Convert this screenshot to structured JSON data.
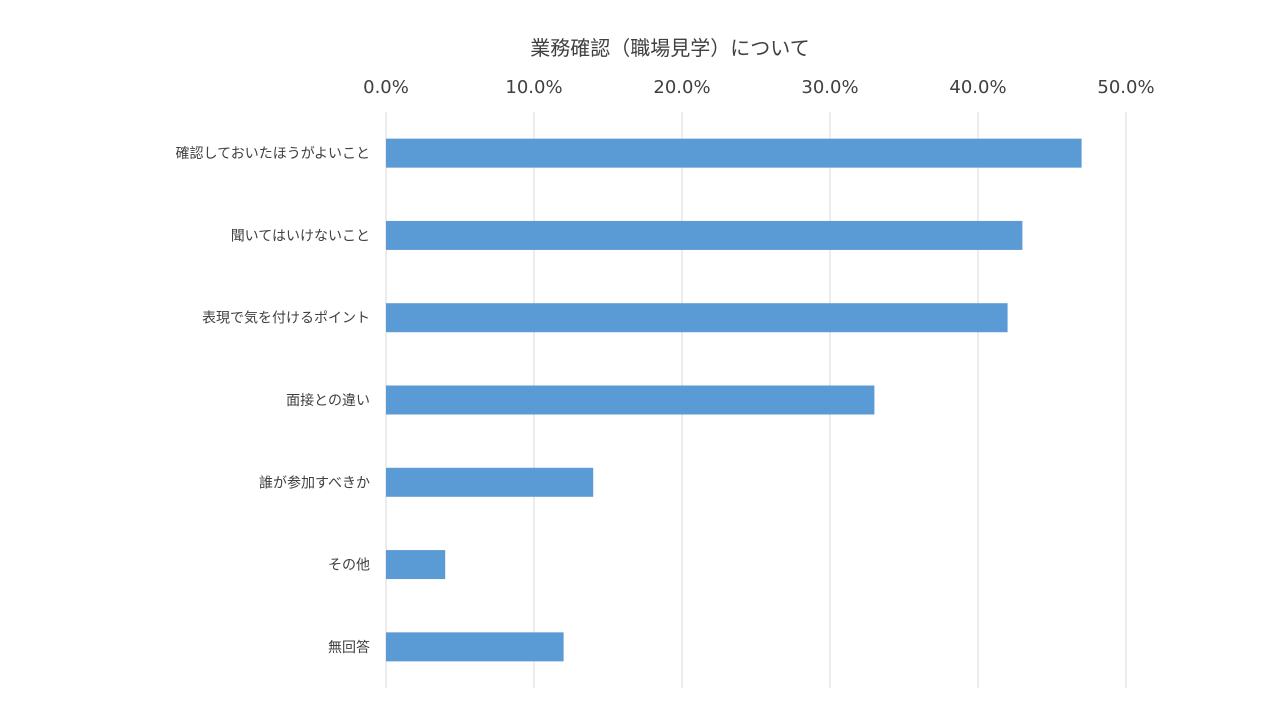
{
  "chart_data": {
    "type": "bar",
    "orientation": "horizontal",
    "title": "業務確認（職場見学）について",
    "xlabel": "",
    "ylabel": "",
    "xlim": [
      0,
      50
    ],
    "x_ticks": [
      0,
      10,
      20,
      30,
      40,
      50
    ],
    "x_tick_labels": [
      "0.0%",
      "10.0%",
      "20.0%",
      "30.0%",
      "40.0%",
      "50.0%"
    ],
    "x_axis_position": "top",
    "grid": true,
    "legend": "none",
    "categories": [
      "確認しておいたほうがよいこと",
      "聞いてはいけないこと",
      "表現で気を付けるポイント",
      "面接との違い",
      "誰が参加すべきか",
      "その他",
      "無回答"
    ],
    "values": [
      47.0,
      43.0,
      42.0,
      33.0,
      14.0,
      4.0,
      12.0
    ],
    "unit": "%",
    "colors": {
      "bar": "#5b9bd5",
      "grid": "#d9d9d9",
      "text": "#404040"
    }
  }
}
